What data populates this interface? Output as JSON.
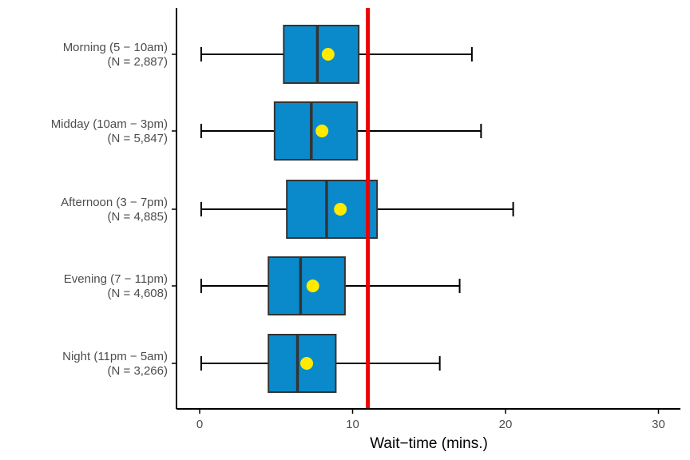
{
  "chart_data": {
    "type": "boxplot",
    "orientation": "horizontal",
    "xlabel": "Wait−time (mins.)",
    "ylabel": "",
    "xlim": [
      -1.5,
      31.5
    ],
    "x_ticks": [
      0,
      10,
      20,
      30
    ],
    "grid": false,
    "categories": [
      {
        "line1": "Morning (5 − 10am)",
        "line2": "(N = 2,887)",
        "whisker_low": 0.1,
        "q1": 5.5,
        "median": 7.7,
        "q3": 10.4,
        "whisker_high": 17.8,
        "mean": 8.4
      },
      {
        "line1": "Midday (10am − 3pm)",
        "line2": "(N = 5,847)",
        "whisker_low": 0.1,
        "q1": 4.9,
        "median": 7.3,
        "q3": 10.3,
        "whisker_high": 18.4,
        "mean": 8.0
      },
      {
        "line1": "Afternoon (3 − 7pm)",
        "line2": "(N = 4,885)",
        "whisker_low": 0.1,
        "q1": 5.7,
        "median": 8.3,
        "q3": 11.6,
        "whisker_high": 20.5,
        "mean": 9.2
      },
      {
        "line1": "Evening (7 − 11pm)",
        "line2": "(N = 4,608)",
        "whisker_low": 0.1,
        "q1": 4.5,
        "median": 6.6,
        "q3": 9.5,
        "whisker_high": 17.0,
        "mean": 7.4
      },
      {
        "line1": "Night (11pm − 5am)",
        "line2": "(N = 3,266)",
        "whisker_low": 0.1,
        "q1": 4.5,
        "median": 6.4,
        "q3": 8.9,
        "whisker_high": 15.7,
        "mean": 7.0
      }
    ],
    "reference_line": {
      "value": 11.0,
      "color": "#ee0000"
    },
    "colors": {
      "box_fill": "#0a8acb",
      "box_stroke": "#333333",
      "mean_marker": "#ffea00",
      "whisker": "#000000",
      "axis": "#000000"
    }
  }
}
